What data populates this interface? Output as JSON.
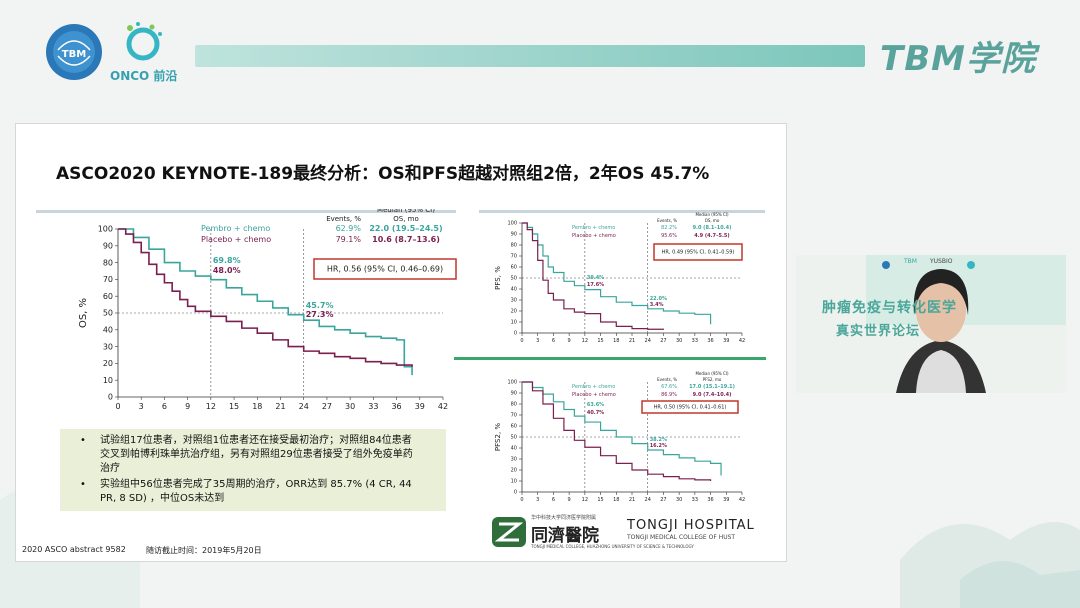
{
  "header": {
    "brand_right": "TBM学院",
    "logo_left_text": "TBM",
    "logo_onco": "ONCO 前沿"
  },
  "slide": {
    "title": "ASCO2020 KEYNOTE-189最终分析：OS和PFS超越对照组2倍，2年OS 45.7%",
    "footer_left": "2020 ASCO abstract 9582",
    "footer_mid": "随访截止时间：2019年5月20日",
    "notes": [
      "试验组17位患者，对照组1位患者还在接受最初治疗；对照组84位患者",
      "交叉到帕博利珠单抗治疗组，另有对照组29位患者接受了组外免疫单药",
      "治疗",
      "实验组中56位患者完成了35周期的治疗，ORR达到 85.7% (4 CR, 44",
      "PR, 8 SD) ，中位OS未达到"
    ],
    "hospital": {
      "cn": "同濟醫院",
      "en": "TONGJI HOSPITAL",
      "sub": "TONGJI MEDICAL COLLEGE OF HUST",
      "top": "华中科技大学同济医学院附属",
      "bottom": "TONGJI MEDICAL COLLEGE, HUAZHONG UNIVERSITY OF SCIENCE & TECHNOLOGY"
    }
  },
  "chart_data": [
    {
      "type": "line",
      "ylabel": "OS, %",
      "xlabel": "",
      "xlim": [
        0,
        42
      ],
      "ylim": [
        0,
        100
      ],
      "x_ticks": [
        0,
        3,
        6,
        9,
        12,
        15,
        18,
        21,
        24,
        27,
        30,
        33,
        36,
        39,
        42
      ],
      "y_ticks": [
        0,
        10,
        20,
        30,
        40,
        50,
        60,
        70,
        80,
        90,
        100
      ],
      "table_headers": [
        "Events, %",
        "Median (95% CI)",
        "OS, mo"
      ],
      "hr_label": "HR, 0.56 (95% CI, 0.46–0.69)",
      "annotations": [
        "69.8%",
        "48.0%",
        "45.7%",
        "27.3%"
      ],
      "series": [
        {
          "name": "Pembro + chemo",
          "events": "62.9%",
          "median": "22.0 (19.5–24.5)",
          "color": "#3aa59c",
          "x": [
            0,
            2,
            4,
            6,
            8,
            10,
            12,
            14,
            16,
            18,
            20,
            22,
            24,
            26,
            28,
            30,
            32,
            34,
            36,
            37,
            38
          ],
          "y": [
            100,
            95,
            88,
            80,
            75,
            72,
            69.8,
            65,
            61,
            57,
            53,
            49,
            45.7,
            42,
            40,
            38,
            36,
            35,
            34,
            18,
            13
          ]
        },
        {
          "name": "Placebo + chemo",
          "events": "79.1%",
          "median": "10.6 (8.7–13.6)",
          "color": "#7a1f4f",
          "x": [
            0,
            1,
            2,
            3,
            4,
            5,
            6,
            7,
            8,
            9,
            10,
            12,
            14,
            16,
            18,
            20,
            22,
            24,
            26,
            28,
            30,
            32,
            34,
            36,
            38
          ],
          "y": [
            100,
            97,
            92,
            86,
            79,
            73,
            68,
            63,
            58,
            54,
            51,
            48,
            45,
            41,
            38,
            34,
            30,
            27.3,
            26,
            24,
            23,
            21,
            20,
            19,
            18
          ]
        }
      ]
    },
    {
      "type": "line",
      "ylabel": "PFS, %",
      "xlim": [
        0,
        42
      ],
      "ylim": [
        0,
        100
      ],
      "x_ticks": [
        0,
        3,
        6,
        9,
        12,
        15,
        18,
        21,
        24,
        27,
        30,
        33,
        36,
        39,
        42
      ],
      "y_ticks": [
        0,
        10,
        20,
        30,
        40,
        50,
        60,
        70,
        80,
        90,
        100
      ],
      "table_headers": [
        "Events, %",
        "Median (95% CI)",
        "OS, mo"
      ],
      "hr_label": "HR, 0.49 (95% CI, 0.41–0.59)",
      "annotations": [
        "39.4%",
        "17.6%",
        "22.0%",
        "3.4%"
      ],
      "series": [
        {
          "name": "Pembro + chemo",
          "events": "82.2%",
          "median": "9.0 (8.1–10.4)",
          "color": "#3aa59c",
          "x": [
            0,
            1,
            2,
            3,
            4,
            5,
            6,
            8,
            10,
            12,
            15,
            18,
            21,
            24,
            27,
            30,
            33,
            36
          ],
          "y": [
            100,
            96,
            90,
            80,
            70,
            60,
            55,
            47,
            43,
            39.4,
            33,
            28,
            25,
            22,
            20,
            18,
            17,
            8
          ]
        },
        {
          "name": "Placebo + chemo",
          "events": "95.6%",
          "median": "4.9 (4.7–5.5)",
          "color": "#7a1f4f",
          "x": [
            0,
            1,
            2,
            3,
            4,
            5,
            6,
            8,
            10,
            12,
            15,
            18,
            21,
            24,
            27
          ],
          "y": [
            100,
            94,
            84,
            66,
            48,
            36,
            30,
            22,
            19,
            17.6,
            10,
            6,
            4,
            3.4,
            3
          ]
        }
      ]
    },
    {
      "type": "line",
      "ylabel": "PFS2, %",
      "xlim": [
        0,
        42
      ],
      "ylim": [
        0,
        100
      ],
      "x_ticks": [
        0,
        3,
        6,
        9,
        12,
        15,
        18,
        21,
        24,
        27,
        30,
        33,
        36,
        39,
        42
      ],
      "y_ticks": [
        0,
        10,
        20,
        30,
        40,
        50,
        60,
        70,
        80,
        90,
        100
      ],
      "table_headers": [
        "Events, %",
        "Median (95% CI)",
        "PFS2, mo"
      ],
      "hr_label": "HR, 0.50 (95% CI, 0.41–0.61)",
      "annotations": [
        "63.6%",
        "40.7%",
        "38.2%",
        "16.2%"
      ],
      "series": [
        {
          "name": "Pembro + chemo",
          "events": "67.6%",
          "median": "17.0 (15.1–19.1)",
          "color": "#3aa59c",
          "x": [
            0,
            2,
            4,
            6,
            8,
            10,
            12,
            15,
            18,
            21,
            24,
            27,
            30,
            33,
            36,
            38
          ],
          "y": [
            100,
            95,
            89,
            82,
            75,
            69,
            63.6,
            56,
            50,
            44,
            38.2,
            34,
            31,
            28,
            26,
            15
          ]
        },
        {
          "name": "Placebo + chemo",
          "events": "86.9%",
          "median": "9.0 (7.4–10.4)",
          "color": "#7a1f4f",
          "x": [
            0,
            2,
            4,
            6,
            8,
            10,
            12,
            15,
            18,
            21,
            24,
            27,
            30,
            33,
            36
          ],
          "y": [
            100,
            92,
            80,
            67,
            56,
            47,
            40.7,
            33,
            26,
            20,
            16.2,
            14,
            12,
            11,
            10
          ]
        }
      ]
    }
  ],
  "webcam": {
    "banner_line1": "肿瘤免疫与转化医学",
    "banner_line2": "真实世界论坛",
    "logos": [
      "TBM",
      "YUSBIO"
    ]
  }
}
